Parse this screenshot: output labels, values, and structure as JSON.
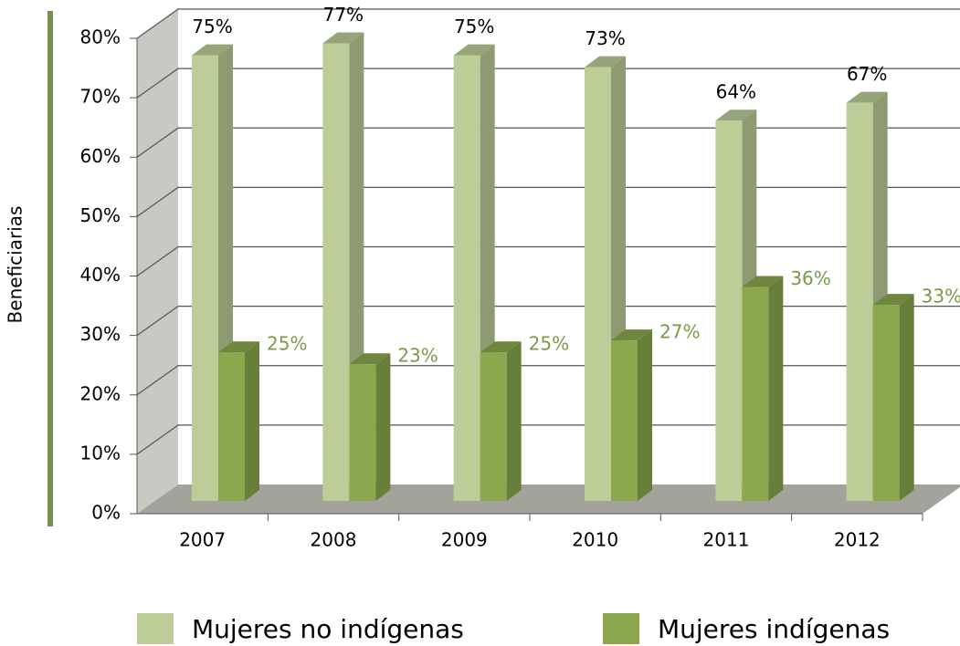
{
  "chart_data": {
    "type": "bar3d",
    "y_axis_label": "Beneficiarias",
    "categories": [
      "2007",
      "2008",
      "2009",
      "2010",
      "2011",
      "2012"
    ],
    "series": [
      {
        "name": "Mujeres no indígenas",
        "color": "#bccd98",
        "values": [
          75,
          77,
          75,
          73,
          64,
          67
        ],
        "value_labels": [
          "75%",
          "77%",
          "75%",
          "73%",
          "64%",
          "67%"
        ]
      },
      {
        "name": "Mujeres indígenas",
        "color": "#8ba84f",
        "values": [
          25,
          23,
          25,
          27,
          36,
          33
        ],
        "value_labels": [
          "25%",
          "23%",
          "25%",
          "27%",
          "36%",
          "33%"
        ]
      }
    ],
    "ylim": [
      0,
      80
    ],
    "yticks": [
      {
        "value": 0,
        "label": "0%"
      },
      {
        "value": 10,
        "label": "10%"
      },
      {
        "value": 20,
        "label": "20%"
      },
      {
        "value": 30,
        "label": "30%"
      },
      {
        "value": 40,
        "label": "40%"
      },
      {
        "value": 50,
        "label": "50%"
      },
      {
        "value": 60,
        "label": "60%"
      },
      {
        "value": 70,
        "label": "70%"
      },
      {
        "value": 80,
        "label": "80%"
      }
    ],
    "grid": true
  }
}
